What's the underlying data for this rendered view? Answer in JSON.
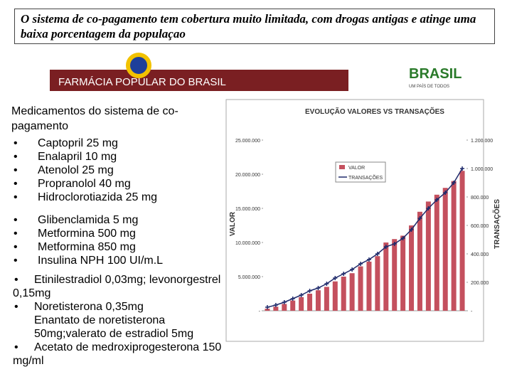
{
  "header": {
    "title": "O sistema de co-pagamento tem cobertura muito limitada, com drogas antigas e atinge uma baixa porcentagem da populaçao"
  },
  "banner": {
    "brand": "FARMÁCIA POPULAR DO BRASIL",
    "logo": "BRASIL",
    "slogan": "UM PAÍS DE TODOS"
  },
  "content": {
    "heading": "Medicamentos do sistema de co-pagamento",
    "group1": [
      "Captopril 25 mg",
      "Enalapril 10 mg",
      "Atenolol 25 mg",
      "Propranolol 40 mg",
      "Hidroclorotiazida 25 mg"
    ],
    "group2": [
      "Glibenclamida 5 mg",
      "Metformina 500 mg",
      "Metformina 850 mg",
      "Insulina NPH 100 UI/m.L"
    ],
    "group3": [
      "Etinilestradiol 0,03mg; levonorgestrel 0,15mg",
      "Noretisterona 0,35mg",
      "Enantato de noretisterona 50mg;valerato de estradiol 5mg",
      "Acetato de medroxiprogesterona 150 mg/ml"
    ]
  },
  "chart_data": {
    "type": "bar-line",
    "title": "EVOLUÇÃO VALORES VS TRANSAÇÕES",
    "ylabel": "VALOR",
    "y2label": "TRANSAÇÕES",
    "categories": [
      null,
      null,
      null,
      null,
      null,
      null,
      null,
      null,
      null,
      null,
      null,
      null,
      null,
      null,
      null,
      null,
      null,
      null,
      null,
      null,
      null,
      null,
      null,
      null
    ],
    "series": [
      {
        "name": "VALOR",
        "color": "#c4505e",
        "values": [
          300000,
          600000,
          1000000,
          1500000,
          2000000,
          2500000,
          3000000,
          3500000,
          4300000,
          5000000,
          5500000,
          6500000,
          7200000,
          8000000,
          10000000,
          10500000,
          11000000,
          12500000,
          14500000,
          16000000,
          17000000,
          18000000,
          19000000,
          20500000
        ]
      },
      {
        "name": "TRANSAÇÕES",
        "color": "#1f2a6b",
        "axis": "y2",
        "values": [
          25000,
          40000,
          60000,
          85000,
          110000,
          140000,
          160000,
          190000,
          230000,
          260000,
          290000,
          330000,
          360000,
          400000,
          450000,
          470000,
          510000,
          570000,
          650000,
          720000,
          780000,
          830000,
          900000,
          1000000
        ]
      }
    ],
    "ylim": [
      0,
      25000000
    ],
    "yticks": [
      {
        "value": 0,
        "label": "-"
      },
      {
        "value": 5000000,
        "label": "5.000.000"
      },
      {
        "value": 10000000,
        "label": "10.000.000"
      },
      {
        "value": 15000000,
        "label": "15.000.000"
      },
      {
        "value": 20000000,
        "label": "20.000.000"
      },
      {
        "value": 25000000,
        "label": "25.000.000"
      }
    ],
    "y2lim": [
      0,
      1200000
    ],
    "y2ticks": [
      {
        "value": 0,
        "label": "-"
      },
      {
        "value": 200000,
        "label": "200.000"
      },
      {
        "value": 400000,
        "label": "400.000"
      },
      {
        "value": 600000,
        "label": "600.000"
      },
      {
        "value": 800000,
        "label": "800.000"
      },
      {
        "value": 1000000,
        "label": "1.000.000"
      },
      {
        "value": 1200000,
        "label": "1.200.000"
      }
    ]
  }
}
